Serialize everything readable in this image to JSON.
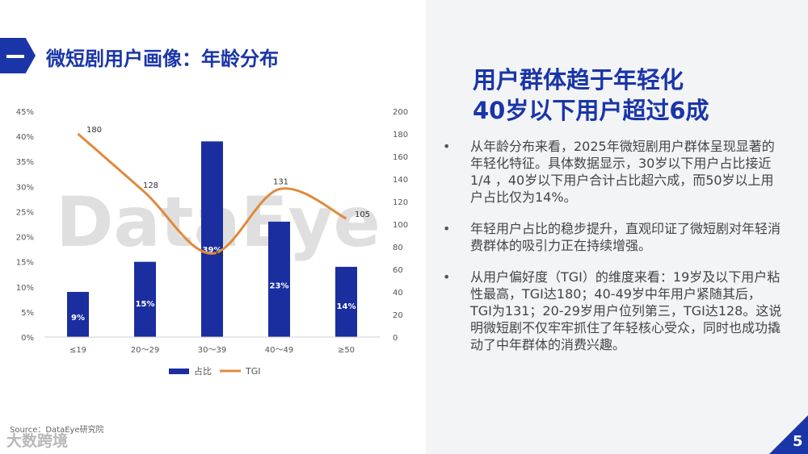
{
  "header": {
    "title": "微短剧用户画像：年龄分布"
  },
  "right": {
    "headline_lines": [
      "用户群体趋于年轻化",
      "40岁以下用户超过6成"
    ],
    "bullets": [
      "从年龄分布来看，2025年微短剧用户群体呈现显著的年轻化特征。具体数据显示，30岁以下用户占比接近1/4 ，40岁以下用户合计占比超六成，而50岁以上用户占比仅为14%。",
      "年轻用户占比的稳步提升，直观印证了微短剧对年轻消费群体的吸引力正在持续增强。",
      "从用户偏好度（TGI）的维度来看：19岁及以下用户粘性最高，TGI达180；40-49岁中年用户紧随其后，TGI为131；20-29岁用户位列第三，TGI达128。这说明微短剧不仅牢牢抓住了年轻核心受众，同时也成功撬动了中年群体的消费兴趣。"
    ],
    "bullet_char": "•"
  },
  "footer": {
    "source": "Source：DataEye研究院",
    "brand": "大数跨境",
    "page_number": "5"
  },
  "watermark": "DataEye",
  "colors": {
    "accent": "#1a35a8",
    "bar": "#1a2ea0",
    "line": "#e08a3c"
  },
  "chart_data": {
    "type": "bar",
    "categories": [
      "≤19",
      "20～29",
      "30～39",
      "40～49",
      "≥50"
    ],
    "series": [
      {
        "name": "占比",
        "type": "bar",
        "axis": "left",
        "values": [
          9,
          15,
          39,
          23,
          14
        ],
        "labels": [
          "9%",
          "15%",
          "39%",
          "23%",
          "14%"
        ]
      },
      {
        "name": "TGI",
        "type": "line",
        "axis": "right",
        "values": [
          180,
          128,
          74,
          131,
          105
        ],
        "labels": [
          "180",
          "128",
          "74",
          "131",
          "105"
        ]
      }
    ],
    "y_left": {
      "ticks": [
        "0%",
        "5%",
        "10%",
        "15%",
        "20%",
        "25%",
        "30%",
        "35%",
        "40%",
        "45%"
      ],
      "range": [
        0,
        45
      ]
    },
    "y_right": {
      "ticks": [
        "0",
        "20",
        "40",
        "60",
        "80",
        "100",
        "120",
        "140",
        "160",
        "180",
        "200"
      ],
      "range": [
        0,
        200
      ]
    },
    "legend": "bottom",
    "grid": false
  }
}
